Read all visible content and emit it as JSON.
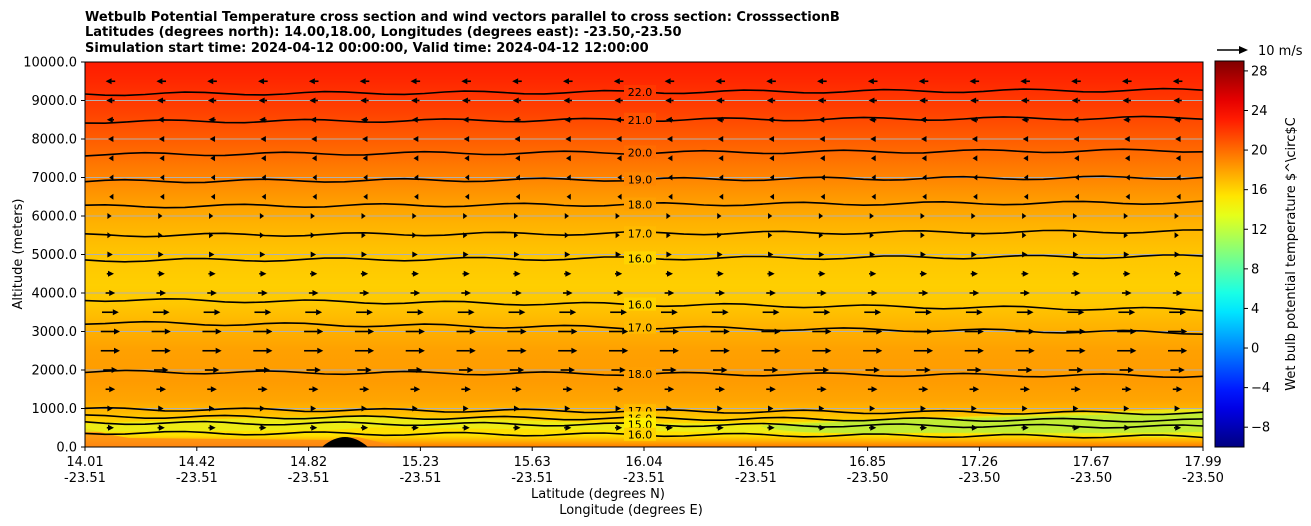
{
  "chart_data": {
    "type": "heatmap",
    "title_lines": [
      "Wetbulb Potential Temperature cross section and wind vectors parallel to cross section: CrosssectionB",
      "Latitudes (degrees north): 14.00,18.00, Longitudes (degrees east): -23.50,-23.50",
      "Simulation start time: 2024-04-12 00:00:00, Valid time: 2024-04-12 12:00:00"
    ],
    "ylabel": "Altitude (meters)",
    "xlabel_lat": "Latitude (degrees N)",
    "xlabel_lon": "Longitude (degrees E)",
    "ylim": [
      0,
      10000
    ],
    "y_ticks": [
      "0.0",
      "1000.0",
      "2000.0",
      "3000.0",
      "4000.0",
      "5000.0",
      "6000.0",
      "7000.0",
      "8000.0",
      "9000.0",
      "10000.0"
    ],
    "x_ticks_lat": [
      "14.01",
      "14.42",
      "14.82",
      "15.23",
      "15.63",
      "16.04",
      "16.45",
      "16.85",
      "17.26",
      "17.67",
      "17.99"
    ],
    "x_ticks_lon": [
      "-23.51",
      "-23.51",
      "-23.51",
      "-23.51",
      "-23.51",
      "-23.51",
      "-23.51",
      "-23.50",
      "-23.50",
      "-23.50",
      "-23.50"
    ],
    "colorbar": {
      "label": "Wet bulb potential temperature $^\\circ$C",
      "range": [
        -10,
        29
      ],
      "ticks": [
        "−8",
        "−4",
        "0",
        "4",
        "8",
        "12",
        "16",
        "20",
        "24",
        "28"
      ],
      "tick_values": [
        -8,
        -4,
        0,
        4,
        8,
        12,
        16,
        20,
        24,
        28
      ]
    },
    "quiver_key": "10 m/s",
    "profile": {
      "altitude_m": [
        0,
        300,
        600,
        900,
        1200,
        1700,
        2500,
        3200,
        3700,
        4200,
        5000,
        5800,
        6500,
        7200,
        7800,
        8600,
        9500,
        10000
      ],
      "theta_w_c": [
        19.5,
        15.5,
        15.8,
        17.0,
        17.8,
        18.2,
        18.0,
        17.2,
        16.5,
        16.2,
        16.6,
        17.3,
        18.3,
        19.4,
        20.3,
        21.5,
        22.6,
        23.1
      ]
    },
    "contour_labels": [
      {
        "text": "22.0",
        "z": 9220
      },
      {
        "text": "21.0",
        "z": 8500
      },
      {
        "text": "20.0",
        "z": 7650
      },
      {
        "text": "19.0",
        "z": 6950
      },
      {
        "text": "18.0",
        "z": 6300
      },
      {
        "text": "17.0",
        "z": 5550
      },
      {
        "text": "16.0",
        "z": 4900
      },
      {
        "text": "16.0",
        "z": 3700
      },
      {
        "text": "17.0",
        "z": 3100
      },
      {
        "text": "18.0",
        "z": 1900
      },
      {
        "text": "17.0",
        "z": 930
      },
      {
        "text": "16.0",
        "z": 740
      },
      {
        "text": "15.0",
        "z": 580
      },
      {
        "text": "16.0",
        "z": 320
      }
    ],
    "wind_levels": [
      {
        "z": 9500,
        "u": -4
      },
      {
        "z": 9000,
        "u": -3.5
      },
      {
        "z": 8500,
        "u": -3
      },
      {
        "z": 8000,
        "u": -2
      },
      {
        "z": 7500,
        "u": -1.5
      },
      {
        "z": 7000,
        "u": -1
      },
      {
        "z": 6500,
        "u": -1
      },
      {
        "z": 6000,
        "u": 1
      },
      {
        "z": 5500,
        "u": 1
      },
      {
        "z": 5000,
        "u": 2
      },
      {
        "z": 4500,
        "u": 3
      },
      {
        "z": 4000,
        "u": 4
      },
      {
        "z": 3500,
        "u": 7
      },
      {
        "z": 3000,
        "u": 8
      },
      {
        "z": 2500,
        "u": 8
      },
      {
        "z": 2000,
        "u": 6
      },
      {
        "z": 1500,
        "u": 4
      },
      {
        "z": 1000,
        "u": 2
      },
      {
        "z": 500,
        "u": 3
      }
    ]
  }
}
